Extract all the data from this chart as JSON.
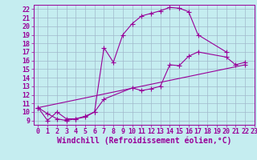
{
  "xlabel": "Windchill (Refroidissement éolien,°C)",
  "xlim": [
    -0.5,
    23
  ],
  "ylim": [
    8.5,
    22.5
  ],
  "xticks": [
    0,
    1,
    2,
    3,
    4,
    5,
    6,
    7,
    8,
    9,
    10,
    11,
    12,
    13,
    14,
    15,
    16,
    17,
    18,
    19,
    20,
    21,
    22,
    23
  ],
  "yticks": [
    9,
    10,
    11,
    12,
    13,
    14,
    15,
    16,
    17,
    18,
    19,
    20,
    21,
    22
  ],
  "bg_color": "#c5edf0",
  "line_color": "#990099",
  "curve1_x": [
    0,
    1,
    2,
    3,
    4,
    5,
    6,
    7,
    8,
    9,
    10,
    11,
    12,
    13,
    14,
    15,
    16,
    17,
    20
  ],
  "curve1_y": [
    10.5,
    9.0,
    10.0,
    9.2,
    9.2,
    9.5,
    10.0,
    17.5,
    15.8,
    19.0,
    20.3,
    21.2,
    21.5,
    21.8,
    22.2,
    22.1,
    21.7,
    19.0,
    17.0
  ],
  "curve2_x": [
    0,
    1,
    2,
    3,
    4,
    5,
    6,
    7,
    10,
    11,
    12,
    13,
    14,
    15,
    16,
    17,
    20,
    21,
    22
  ],
  "curve2_y": [
    10.5,
    9.8,
    9.2,
    9.0,
    9.2,
    9.4,
    10.0,
    11.5,
    12.8,
    12.5,
    12.7,
    13.0,
    15.5,
    15.4,
    16.5,
    17.0,
    16.4,
    15.5,
    15.8
  ],
  "curve3_x": [
    0,
    22
  ],
  "curve3_y": [
    10.5,
    15.5
  ],
  "marker": "+",
  "markersize": 4,
  "linewidth": 0.8,
  "grid_color": "#a0b8cc",
  "xlabel_fontsize": 7,
  "tick_fontsize": 6
}
